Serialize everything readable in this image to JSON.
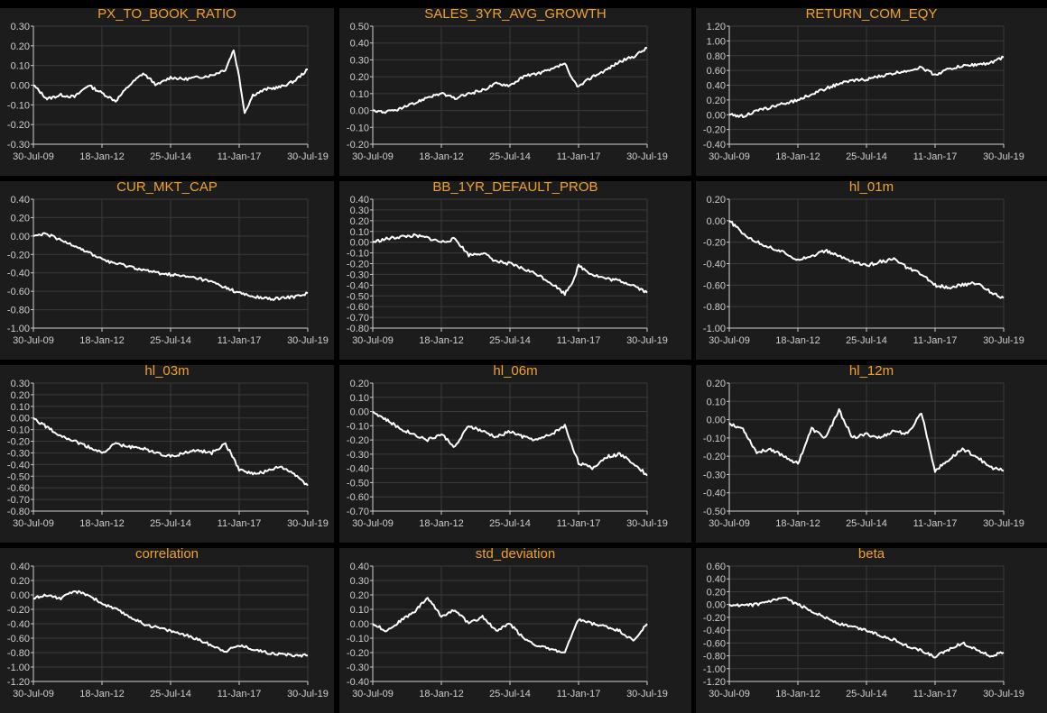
{
  "colors": {
    "background": "#000000",
    "panel": "#1c1c1c",
    "title": "#f0a030",
    "line": "#ffffff",
    "grid": "#3a3a3a",
    "axis": "#cfcfcf"
  },
  "x_tick_labels": [
    "30-Jul-09",
    "18-Jan-12",
    "25-Jul-14",
    "11-Jan-17",
    "30-Jul-19"
  ],
  "chart_data": [
    {
      "type": "line",
      "title": "PX_TO_BOOK_RATIO",
      "ylim": [
        -0.3,
        0.3
      ],
      "yticks": [
        "0.30",
        "0.20",
        "0.10",
        "0.00",
        "-0.10",
        "-0.20",
        "-0.30"
      ],
      "x": [
        0,
        0.5,
        1,
        1.5,
        2,
        2.5,
        3,
        3.5,
        4,
        4.5,
        5,
        5.5,
        6,
        6.5,
        7,
        7.3,
        7.5,
        7.7,
        8,
        8.5,
        9,
        9.5,
        10
      ],
      "series": [
        {
          "name": "PX_TO_BOOK_RATIO",
          "values": [
            0.0,
            -0.07,
            -0.05,
            -0.06,
            0.0,
            -0.04,
            -0.08,
            0.0,
            0.06,
            0.0,
            0.04,
            0.03,
            0.04,
            0.05,
            0.08,
            0.18,
            0.04,
            -0.14,
            -0.05,
            -0.02,
            -0.01,
            0.02,
            0.08
          ]
        }
      ]
    },
    {
      "type": "line",
      "title": "SALES_3YR_AVG_GROWTH",
      "ylim": [
        -0.2,
        0.5
      ],
      "yticks": [
        "0.50",
        "0.40",
        "0.30",
        "0.20",
        "0.10",
        "0.00",
        "-0.10",
        "-0.20"
      ],
      "x": [
        0,
        0.5,
        1,
        1.5,
        2,
        2.5,
        3,
        3.5,
        4,
        4.5,
        5,
        5.5,
        6,
        6.5,
        7,
        7.2,
        7.5,
        8,
        8.5,
        9,
        9.5,
        10
      ],
      "series": [
        {
          "name": "SALES_3YR_AVG_GROWTH",
          "values": [
            0.0,
            -0.01,
            0.01,
            0.04,
            0.08,
            0.1,
            0.07,
            0.1,
            0.12,
            0.16,
            0.15,
            0.2,
            0.22,
            0.24,
            0.28,
            0.2,
            0.14,
            0.2,
            0.24,
            0.29,
            0.32,
            0.37
          ]
        }
      ]
    },
    {
      "type": "line",
      "title": "RETURN_COM_EQY",
      "ylim": [
        -0.4,
        1.2
      ],
      "yticks": [
        "1.20",
        "1.00",
        "0.80",
        "0.60",
        "0.40",
        "0.20",
        "0.00",
        "-0.20",
        "-0.40"
      ],
      "x": [
        0,
        0.5,
        1,
        1.5,
        2,
        2.5,
        3,
        3.5,
        4,
        4.5,
        5,
        5.5,
        6,
        6.5,
        7,
        7.5,
        8,
        8.5,
        9,
        9.5,
        10
      ],
      "series": [
        {
          "name": "RETURN_COM_EQY",
          "values": [
            0.0,
            -0.02,
            0.05,
            0.1,
            0.15,
            0.2,
            0.28,
            0.35,
            0.42,
            0.46,
            0.48,
            0.52,
            0.56,
            0.6,
            0.64,
            0.54,
            0.62,
            0.66,
            0.68,
            0.7,
            0.78
          ]
        }
      ]
    },
    {
      "type": "line",
      "title": "CUR_MKT_CAP",
      "ylim": [
        -1.0,
        0.4
      ],
      "yticks": [
        "0.40",
        "0.20",
        "0.00",
        "-0.20",
        "-0.40",
        "-0.60",
        "-0.80",
        "-1.00"
      ],
      "x": [
        0,
        0.5,
        1,
        1.5,
        2,
        2.5,
        3,
        3.5,
        4,
        4.5,
        5,
        5.5,
        6,
        6.5,
        7,
        7.5,
        8,
        8.5,
        9,
        9.5,
        10
      ],
      "series": [
        {
          "name": "CUR_MKT_CAP",
          "values": [
            0.0,
            0.02,
            -0.05,
            -0.1,
            -0.18,
            -0.25,
            -0.3,
            -0.33,
            -0.37,
            -0.4,
            -0.42,
            -0.44,
            -0.46,
            -0.5,
            -0.56,
            -0.62,
            -0.66,
            -0.68,
            -0.68,
            -0.66,
            -0.62
          ]
        }
      ]
    },
    {
      "type": "line",
      "title": "BB_1YR_DEFAULT_PROB",
      "ylim": [
        -0.8,
        0.4
      ],
      "yticks": [
        "0.40",
        "0.30",
        "0.20",
        "0.10",
        "0.00",
        "-0.10",
        "-0.20",
        "-0.30",
        "-0.40",
        "-0.50",
        "-0.60",
        "-0.70",
        "-0.80"
      ],
      "x": [
        0,
        0.5,
        1,
        1.5,
        2,
        2.5,
        3,
        3.5,
        4,
        4.5,
        5,
        5.5,
        6,
        6.5,
        7,
        7.3,
        7.5,
        8,
        8.5,
        9,
        9.5,
        10
      ],
      "series": [
        {
          "name": "BB_1YR_DEFAULT_PROB",
          "values": [
            0.0,
            0.03,
            0.05,
            0.06,
            0.04,
            0.0,
            0.03,
            -0.12,
            -0.1,
            -0.18,
            -0.2,
            -0.25,
            -0.3,
            -0.38,
            -0.48,
            -0.36,
            -0.22,
            -0.3,
            -0.34,
            -0.36,
            -0.4,
            -0.47
          ]
        }
      ]
    },
    {
      "type": "line",
      "title": "hl_01m",
      "ylim": [
        -1.0,
        0.2
      ],
      "yticks": [
        "0.20",
        "0.00",
        "-0.20",
        "-0.40",
        "-0.60",
        "-0.80",
        "-1.00"
      ],
      "x": [
        0,
        0.5,
        1,
        1.5,
        2,
        2.5,
        3,
        3.5,
        4,
        4.5,
        5,
        5.5,
        6,
        6.5,
        7,
        7.5,
        8,
        8.5,
        9,
        9.5,
        10
      ],
      "series": [
        {
          "name": "hl_01m",
          "values": [
            0.0,
            -0.12,
            -0.2,
            -0.25,
            -0.3,
            -0.36,
            -0.33,
            -0.28,
            -0.33,
            -0.38,
            -0.42,
            -0.38,
            -0.36,
            -0.44,
            -0.5,
            -0.6,
            -0.62,
            -0.6,
            -0.58,
            -0.66,
            -0.72
          ]
        }
      ]
    },
    {
      "type": "line",
      "title": "hl_03m",
      "ylim": [
        -0.8,
        0.3
      ],
      "yticks": [
        "0.30",
        "0.20",
        "0.10",
        "0.00",
        "-0.10",
        "-0.20",
        "-0.30",
        "-0.40",
        "-0.50",
        "-0.60",
        "-0.70",
        "-0.80"
      ],
      "x": [
        0,
        0.5,
        1,
        1.5,
        2,
        2.5,
        3,
        3.5,
        4,
        4.5,
        5,
        5.5,
        6,
        6.5,
        7,
        7.5,
        8,
        8.5,
        9,
        9.5,
        10
      ],
      "series": [
        {
          "name": "hl_03m",
          "values": [
            0.0,
            -0.08,
            -0.15,
            -0.2,
            -0.25,
            -0.3,
            -0.22,
            -0.25,
            -0.26,
            -0.3,
            -0.33,
            -0.3,
            -0.28,
            -0.3,
            -0.22,
            -0.44,
            -0.48,
            -0.46,
            -0.42,
            -0.48,
            -0.58
          ]
        }
      ]
    },
    {
      "type": "line",
      "title": "hl_06m",
      "ylim": [
        -0.7,
        0.2
      ],
      "yticks": [
        "0.20",
        "0.10",
        "0.00",
        "-0.10",
        "-0.20",
        "-0.30",
        "-0.40",
        "-0.50",
        "-0.60",
        "-0.70"
      ],
      "x": [
        0,
        0.5,
        1,
        1.5,
        2,
        2.5,
        3,
        3.5,
        4,
        4.5,
        5,
        5.5,
        6,
        6.5,
        7,
        7.5,
        8,
        8.5,
        9,
        9.5,
        10
      ],
      "series": [
        {
          "name": "hl_06m",
          "values": [
            0.0,
            -0.06,
            -0.12,
            -0.16,
            -0.2,
            -0.16,
            -0.25,
            -0.1,
            -0.14,
            -0.18,
            -0.14,
            -0.18,
            -0.2,
            -0.16,
            -0.1,
            -0.36,
            -0.4,
            -0.32,
            -0.3,
            -0.36,
            -0.45
          ]
        }
      ]
    },
    {
      "type": "line",
      "title": "hl_12m",
      "ylim": [
        -0.5,
        0.2
      ],
      "yticks": [
        "0.20",
        "0.10",
        "0.00",
        "-0.10",
        "-0.20",
        "-0.30",
        "-0.40",
        "-0.50"
      ],
      "x": [
        0,
        0.5,
        1,
        1.5,
        2,
        2.5,
        3,
        3.5,
        4,
        4.5,
        5,
        5.5,
        6,
        6.5,
        7,
        7.5,
        8,
        8.5,
        9,
        9.5,
        10
      ],
      "series": [
        {
          "name": "hl_12m",
          "values": [
            -0.02,
            -0.05,
            -0.18,
            -0.16,
            -0.2,
            -0.24,
            -0.05,
            -0.1,
            0.05,
            -0.1,
            -0.08,
            -0.1,
            -0.06,
            -0.08,
            0.04,
            -0.28,
            -0.22,
            -0.16,
            -0.2,
            -0.26,
            -0.28
          ]
        }
      ]
    },
    {
      "type": "line",
      "title": "correlation",
      "ylim": [
        -1.2,
        0.4
      ],
      "yticks": [
        "0.40",
        "0.20",
        "0.00",
        "-0.20",
        "-0.40",
        "-0.60",
        "-0.80",
        "-1.00",
        "-1.20"
      ],
      "x": [
        0,
        0.5,
        1,
        1.5,
        2,
        2.5,
        3,
        3.5,
        4,
        4.5,
        5,
        5.5,
        6,
        6.5,
        7,
        7.5,
        8,
        8.5,
        9,
        9.5,
        10
      ],
      "series": [
        {
          "name": "correlation",
          "values": [
            -0.05,
            0.0,
            -0.05,
            0.05,
            0.0,
            -0.12,
            -0.2,
            -0.3,
            -0.4,
            -0.45,
            -0.5,
            -0.55,
            -0.62,
            -0.7,
            -0.78,
            -0.7,
            -0.75,
            -0.8,
            -0.82,
            -0.84,
            -0.84
          ]
        }
      ]
    },
    {
      "type": "line",
      "title": "std_deviation",
      "ylim": [
        -0.4,
        0.4
      ],
      "yticks": [
        "0.40",
        "0.30",
        "0.20",
        "0.10",
        "0.00",
        "-0.10",
        "-0.20",
        "-0.30",
        "-0.40"
      ],
      "x": [
        0,
        0.5,
        1,
        1.5,
        2,
        2.5,
        3,
        3.5,
        4,
        4.5,
        5,
        5.5,
        6,
        6.5,
        7,
        7.5,
        8,
        8.5,
        9,
        9.5,
        10
      ],
      "series": [
        {
          "name": "std_deviation",
          "values": [
            0.0,
            -0.05,
            0.02,
            0.08,
            0.18,
            0.05,
            0.1,
            0.0,
            0.05,
            -0.05,
            0.0,
            -0.1,
            -0.15,
            -0.18,
            -0.2,
            0.03,
            0.0,
            -0.02,
            -0.05,
            -0.12,
            0.0
          ]
        }
      ]
    },
    {
      "type": "line",
      "title": "beta",
      "ylim": [
        -1.2,
        0.6
      ],
      "yticks": [
        "0.60",
        "0.40",
        "0.20",
        "0.00",
        "-0.20",
        "-0.40",
        "-0.60",
        "-0.80",
        "-1.00",
        "-1.20"
      ],
      "x": [
        0,
        0.5,
        1,
        1.5,
        2,
        2.5,
        3,
        3.5,
        4,
        4.5,
        5,
        5.5,
        6,
        6.5,
        7,
        7.5,
        8,
        8.5,
        9,
        9.5,
        10
      ],
      "series": [
        {
          "name": "beta",
          "values": [
            0.0,
            -0.02,
            0.0,
            0.05,
            0.1,
            0.0,
            -0.1,
            -0.2,
            -0.3,
            -0.35,
            -0.4,
            -0.48,
            -0.55,
            -0.65,
            -0.72,
            -0.82,
            -0.7,
            -0.6,
            -0.7,
            -0.8,
            -0.75
          ]
        }
      ]
    }
  ]
}
